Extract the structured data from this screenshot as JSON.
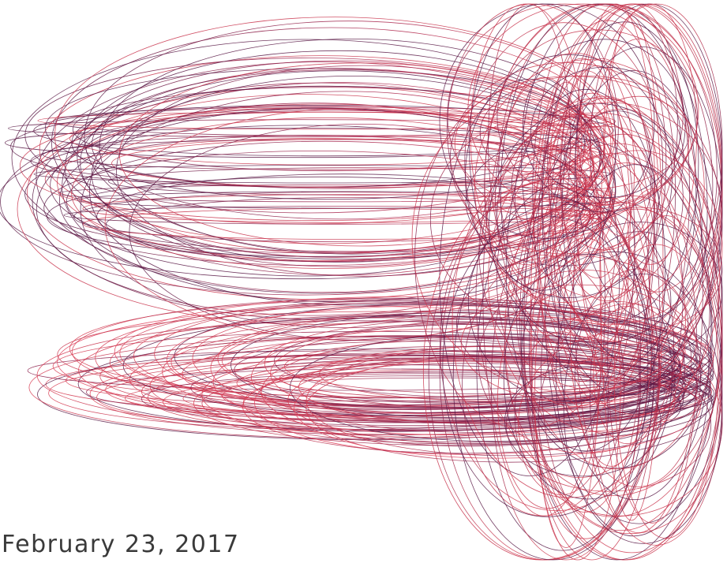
{
  "caption": {
    "date": "February 23, 2017"
  },
  "palette": {
    "dark": "#5a1a46",
    "mid": "#8c1f4a",
    "light": "#c9344c",
    "accent": "#e0405a"
  }
}
